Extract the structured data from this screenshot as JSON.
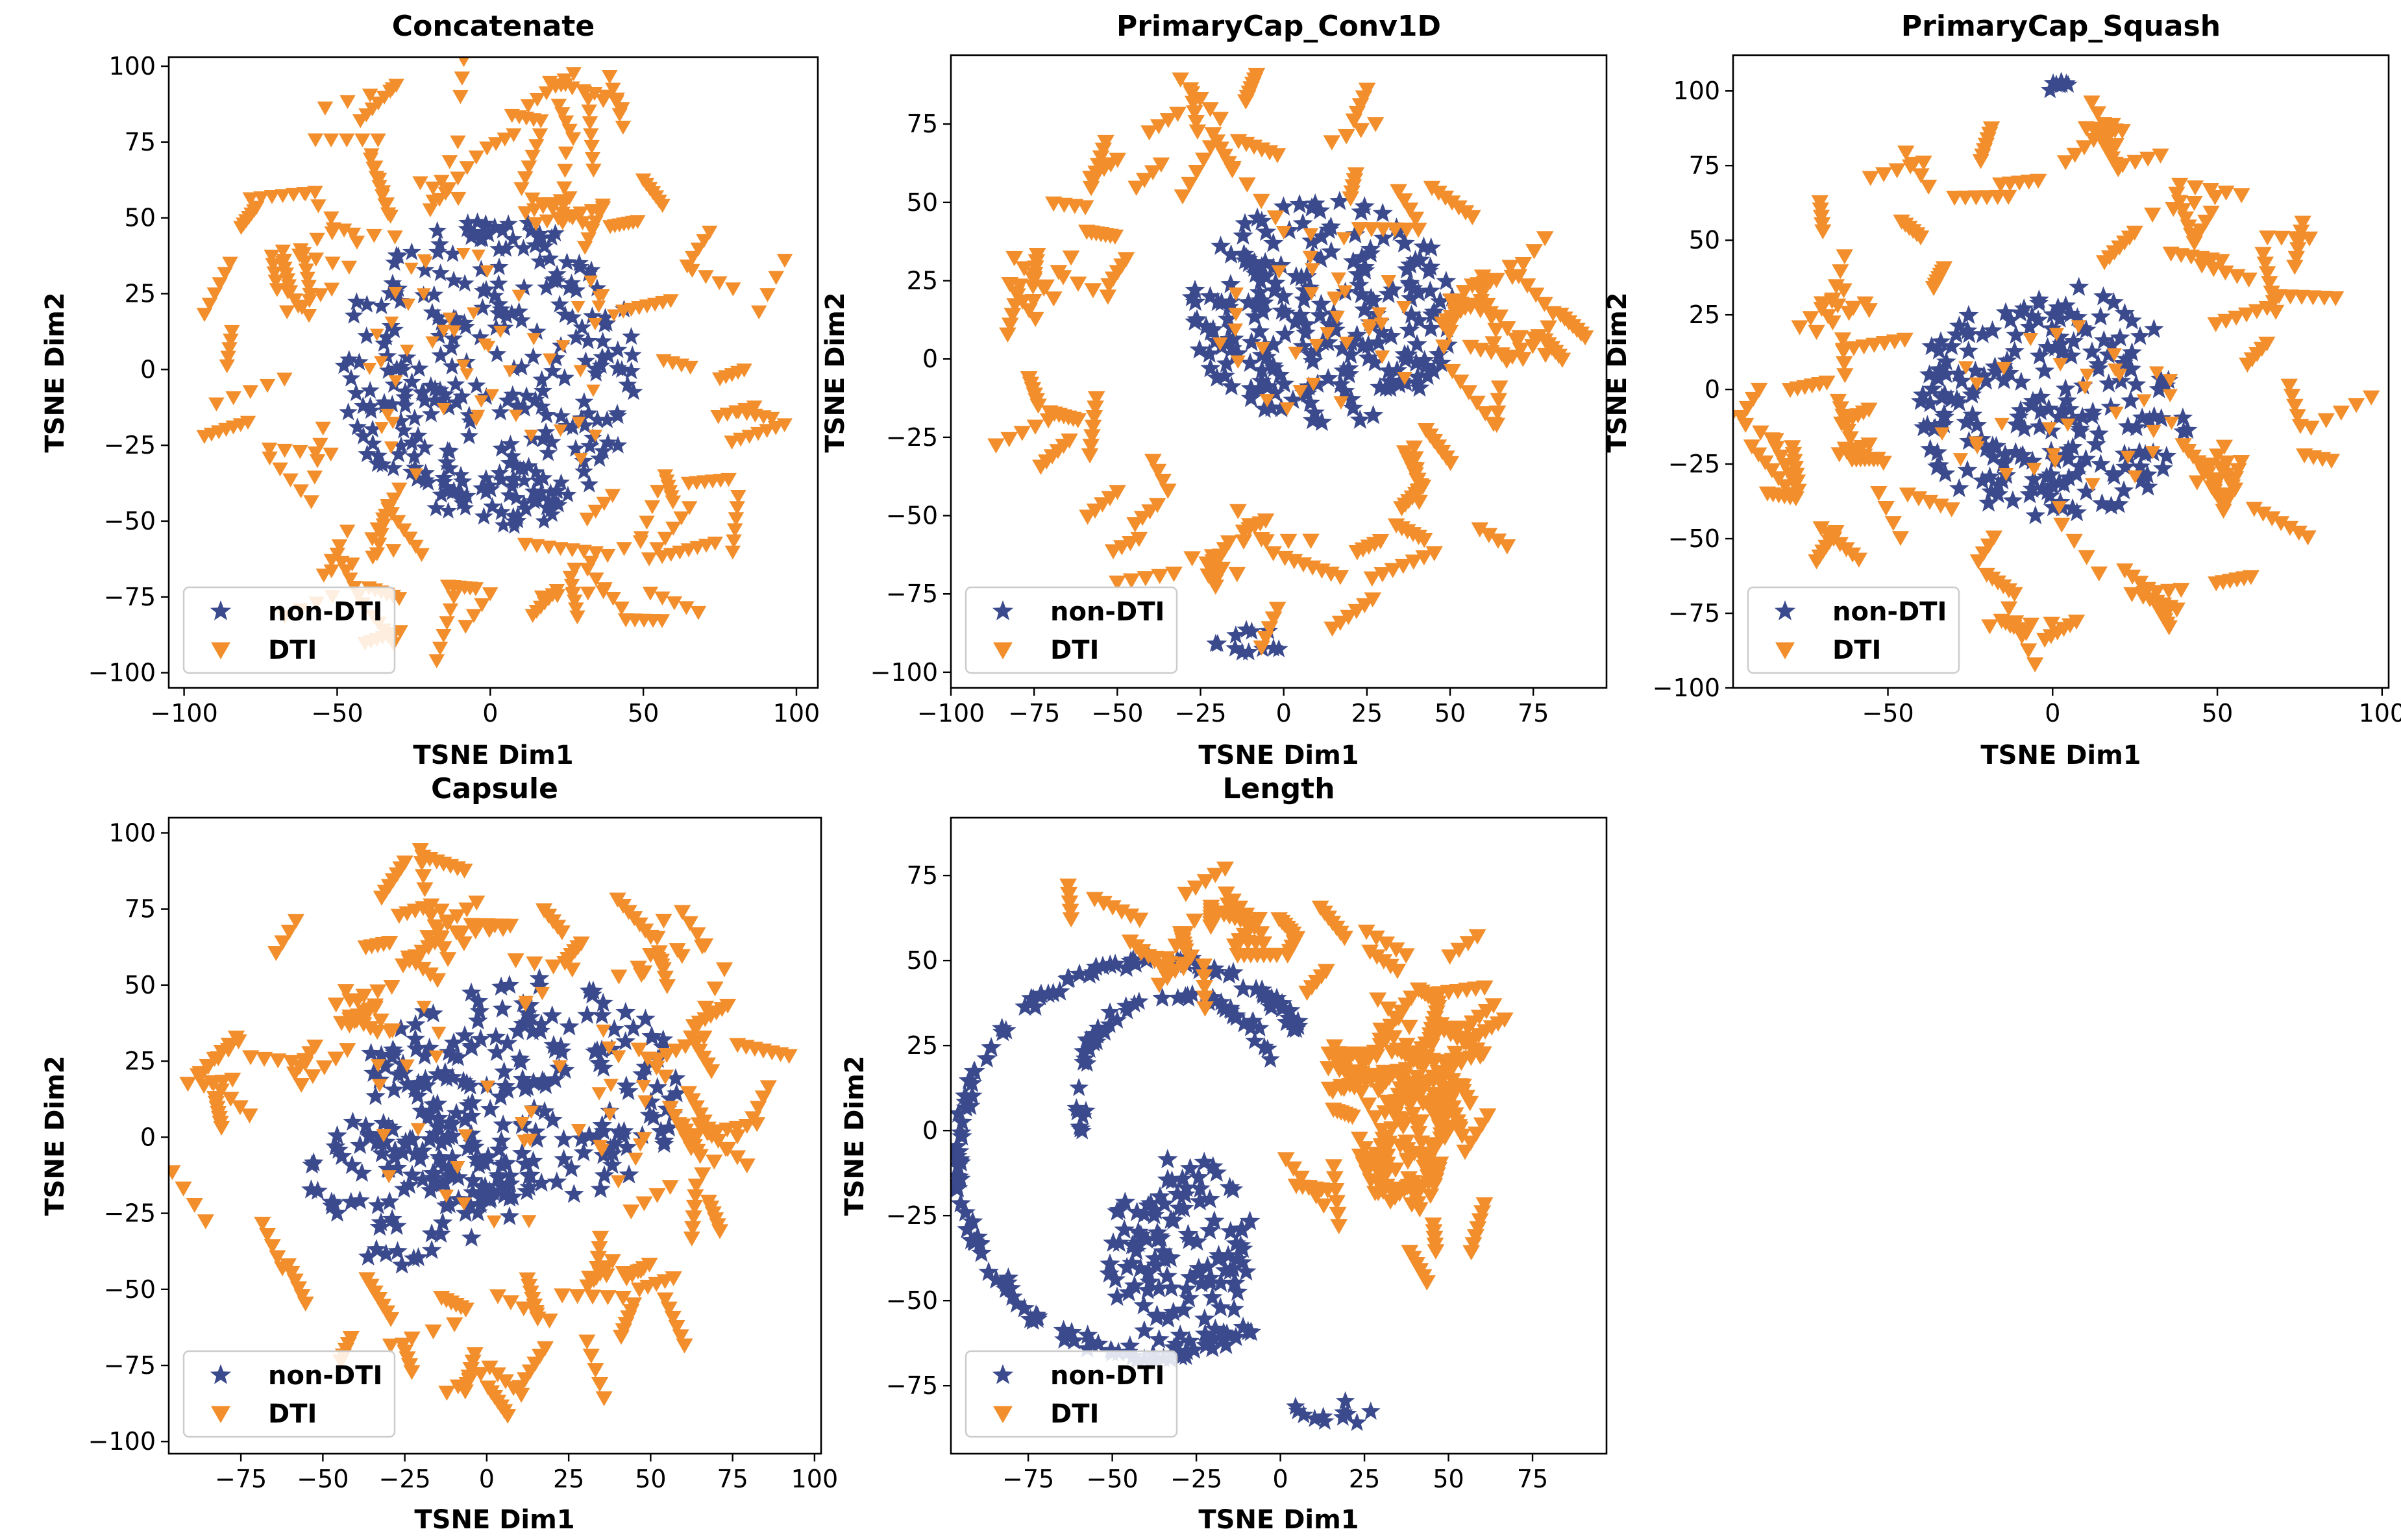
{
  "figure": {
    "colors": {
      "non_dti": "#3b4a8c",
      "dti": "#f28e2b"
    },
    "legend_labels": {
      "non_dti": "non-DTI",
      "dti": "DTI"
    }
  },
  "chart_data": [
    {
      "id": "concatenate",
      "type": "scatter",
      "title": "Concatenate",
      "xlabel": "TSNE Dim1",
      "ylabel": "TSNE Dim2",
      "xlim": [
        -105,
        107
      ],
      "ylim": [
        -105,
        103
      ],
      "xticks": [
        -100,
        -50,
        0,
        50,
        100
      ],
      "yticks": [
        -100,
        -75,
        -50,
        -25,
        0,
        25,
        50,
        75,
        100
      ],
      "legend_position": "lower-left",
      "series": [
        {
          "name": "non-DTI",
          "marker": "star",
          "color": "#3b4a8c",
          "clusters": [
            {
              "cx": 0,
              "cy": 0,
              "rx": 50,
              "ry": 50,
              "n": 280,
              "size": 3.2
            },
            {
              "cx": 5,
              "cy": -42,
              "rx": 22,
              "ry": 10,
              "n": 40,
              "size": 3.0
            }
          ]
        },
        {
          "name": "DTI",
          "marker": "triangle-down",
          "color": "#f28e2b",
          "clusters": [
            {
              "ring": true,
              "r0": 55,
              "r1": 100,
              "n": 80,
              "len": 16,
              "size": 2.6
            },
            {
              "cx": 0,
              "cy": 0,
              "rx": 45,
              "ry": 45,
              "n": 55,
              "size": 2.3
            }
          ]
        }
      ]
    },
    {
      "id": "primarycap-conv1d",
      "type": "scatter",
      "title": "PrimaryCap_Conv1D",
      "xlabel": "TSNE Dim1",
      "ylabel": "TSNE Dim2",
      "xlim": [
        -100,
        97
      ],
      "ylim": [
        -105,
        97
      ],
      "xticks": [
        -100,
        -75,
        -50,
        -25,
        0,
        25,
        50,
        75
      ],
      "yticks": [
        -100,
        -75,
        -50,
        -25,
        0,
        25,
        50,
        75
      ],
      "legend_position": "lower-left",
      "series": [
        {
          "name": "non-DTI",
          "marker": "star",
          "color": "#3b4a8c",
          "clusters": [
            {
              "cx": 12,
              "cy": 15,
              "rx": 40,
              "ry": 36,
              "n": 230,
              "size": 3.2
            },
            {
              "cx": -10,
              "cy": -90,
              "rx": 12,
              "ry": 4,
              "n": 12,
              "size": 3.0
            }
          ]
        },
        {
          "name": "DTI",
          "marker": "triangle-down",
          "color": "#f28e2b",
          "clusters": [
            {
              "ring": true,
              "r0": 52,
              "r1": 88,
              "n": 70,
              "len": 14,
              "size": 2.6
            },
            {
              "cx": 10,
              "cy": 12,
              "rx": 35,
              "ry": 30,
              "n": 35,
              "size": 2.3
            }
          ]
        }
      ]
    },
    {
      "id": "primarycap-squash",
      "type": "scatter",
      "title": "PrimaryCap_Squash",
      "xlabel": "TSNE Dim1",
      "ylabel": "TSNE Dim2",
      "xlim": [
        -97,
        102
      ],
      "ylim": [
        -100,
        112
      ],
      "xticks": [
        -50,
        0,
        50,
        100
      ],
      "yticks": [
        -100,
        -75,
        -50,
        -25,
        0,
        25,
        50,
        75,
        100
      ],
      "legend_position": "lower-left",
      "series": [
        {
          "name": "non-DTI",
          "marker": "star",
          "color": "#3b4a8c",
          "clusters": [
            {
              "cx": 0,
              "cy": -5,
              "rx": 42,
              "ry": 40,
              "n": 220,
              "size": 3.2
            },
            {
              "cx": 0,
              "cy": 102,
              "rx": 5,
              "ry": 2,
              "n": 8,
              "size": 3.0
            }
          ]
        },
        {
          "name": "DTI",
          "marker": "triangle-down",
          "color": "#f28e2b",
          "clusters": [
            {
              "ring": true,
              "r0": 50,
              "r1": 92,
              "n": 70,
              "len": 14,
              "size": 2.6
            },
            {
              "cx": 0,
              "cy": -5,
              "rx": 38,
              "ry": 35,
              "n": 35,
              "size": 2.3
            }
          ]
        }
      ]
    },
    {
      "id": "capsule",
      "type": "scatter",
      "title": "Capsule",
      "xlabel": "TSNE Dim1",
      "ylabel": "TSNE Dim2",
      "xlim": [
        -97,
        102
      ],
      "ylim": [
        -104,
        105
      ],
      "xticks": [
        -75,
        -50,
        -25,
        0,
        25,
        50,
        75,
        100
      ],
      "yticks": [
        -100,
        -75,
        -50,
        -25,
        0,
        25,
        50,
        75,
        100
      ],
      "legend_position": "lower-left",
      "series": [
        {
          "name": "non-DTI",
          "marker": "star",
          "color": "#3b4a8c",
          "clusters": [
            {
              "cx": 10,
              "cy": 15,
              "rx": 50,
              "ry": 38,
              "n": 220,
              "size": 3.2
            },
            {
              "cx": -22,
              "cy": -15,
              "rx": 32,
              "ry": 28,
              "n": 90,
              "size": 3.2
            }
          ]
        },
        {
          "name": "DTI",
          "marker": "triangle-down",
          "color": "#f28e2b",
          "clusters": [
            {
              "ring": true,
              "r0": 52,
              "r1": 95,
              "n": 75,
              "len": 14,
              "size": 2.6
            },
            {
              "cx": 5,
              "cy": 10,
              "rx": 45,
              "ry": 40,
              "n": 40,
              "size": 2.3
            }
          ]
        }
      ]
    },
    {
      "id": "length",
      "type": "scatter",
      "title": "Length",
      "xlabel": "TSNE Dim1",
      "ylabel": "TSNE Dim2",
      "xlim": [
        -98,
        97
      ],
      "ylim": [
        -95,
        92
      ],
      "xticks": [
        -75,
        -50,
        -25,
        0,
        25,
        50,
        75
      ],
      "yticks": [
        -75,
        -50,
        -25,
        0,
        25,
        50,
        75
      ],
      "legend_position": "lower-left",
      "series": [
        {
          "name": "non-DTI",
          "marker": "star",
          "color": "#3b4a8c",
          "clusters": [
            {
              "arc": true,
              "cx": -38,
              "cy": -8,
              "r": 58,
              "a0": 40,
              "a1": 300,
              "n": 160,
              "size": 3.2
            },
            {
              "cx": -30,
              "cy": -35,
              "rx": 22,
              "ry": 28,
              "n": 120,
              "size": 3.2
            },
            {
              "arc": true,
              "cx": -30,
              "cy": 10,
              "r": 30,
              "a0": 20,
              "a1": 200,
              "n": 60,
              "size": 3.0
            },
            {
              "cx": 15,
              "cy": -83,
              "rx": 12,
              "ry": 4,
              "n": 12,
              "size": 3.0
            }
          ]
        },
        {
          "name": "DTI",
          "marker": "triangle-down",
          "color": "#f28e2b",
          "clusters": [
            {
              "cx": 40,
              "cy": 10,
              "rx": 40,
              "ry": 65,
              "n": 70,
              "len": 12,
              "sticks": true,
              "size": 2.6
            },
            {
              "cx": -20,
              "cy": 55,
              "rx": 60,
              "ry": 25,
              "n": 20,
              "len": 10,
              "sticks": true,
              "size": 2.6
            }
          ]
        }
      ]
    }
  ]
}
